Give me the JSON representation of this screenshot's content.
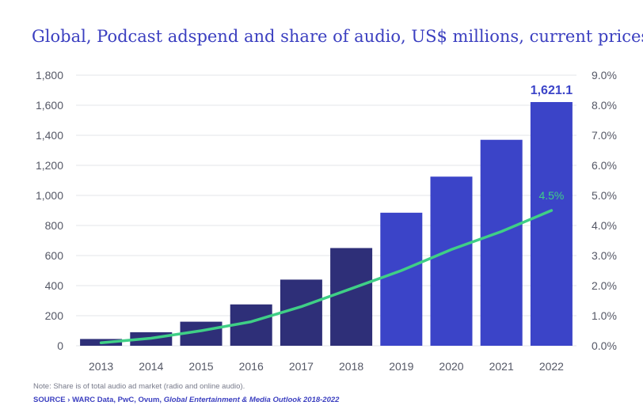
{
  "title": "Global, Podcast adspend and share of audio, US$ millions, current prices",
  "note": "Note: Share is of total audio ad market (radio and online audio).",
  "source": {
    "label": "SOURCE ›",
    "text": " WARC Data, PwC, Ovum, ",
    "publication": "Global Entertainment & Media Outlook 2018-2022"
  },
  "chart_data": {
    "type": "bar",
    "categories": [
      "2013",
      "2014",
      "2015",
      "2016",
      "2017",
      "2018",
      "2019",
      "2020",
      "2021",
      "2022"
    ],
    "series": [
      {
        "values": [
          45,
          90,
          160,
          275,
          440,
          650,
          885,
          1125,
          1370,
          1621.1
        ],
        "color_actual": "#2e2f78",
        "color_forecast": "#3b44c8",
        "forecast_from": "2019"
      },
      {
        "type": "line",
        "axis": "right",
        "values": [
          0.1,
          0.25,
          0.5,
          0.8,
          1.3,
          1.9,
          2.5,
          3.2,
          3.8,
          4.5
        ],
        "color": "#3fcf86"
      }
    ],
    "left_axis": {
      "ylim": [
        0,
        1800
      ],
      "ticks": [
        "0",
        "200",
        "400",
        "600",
        "800",
        "1,000",
        "1,200",
        "1,400",
        "1,600",
        "1,800"
      ]
    },
    "right_axis": {
      "ylim": [
        0,
        9
      ],
      "ticks": [
        "0.0%",
        "1.0%",
        "2.0%",
        "3.0%",
        "4.0%",
        "5.0%",
        "6.0%",
        "7.0%",
        "8.0%",
        "9.0%"
      ]
    },
    "annotations": {
      "bar_last": "1,621.1",
      "line_last": "4.5%"
    },
    "grid": true
  }
}
